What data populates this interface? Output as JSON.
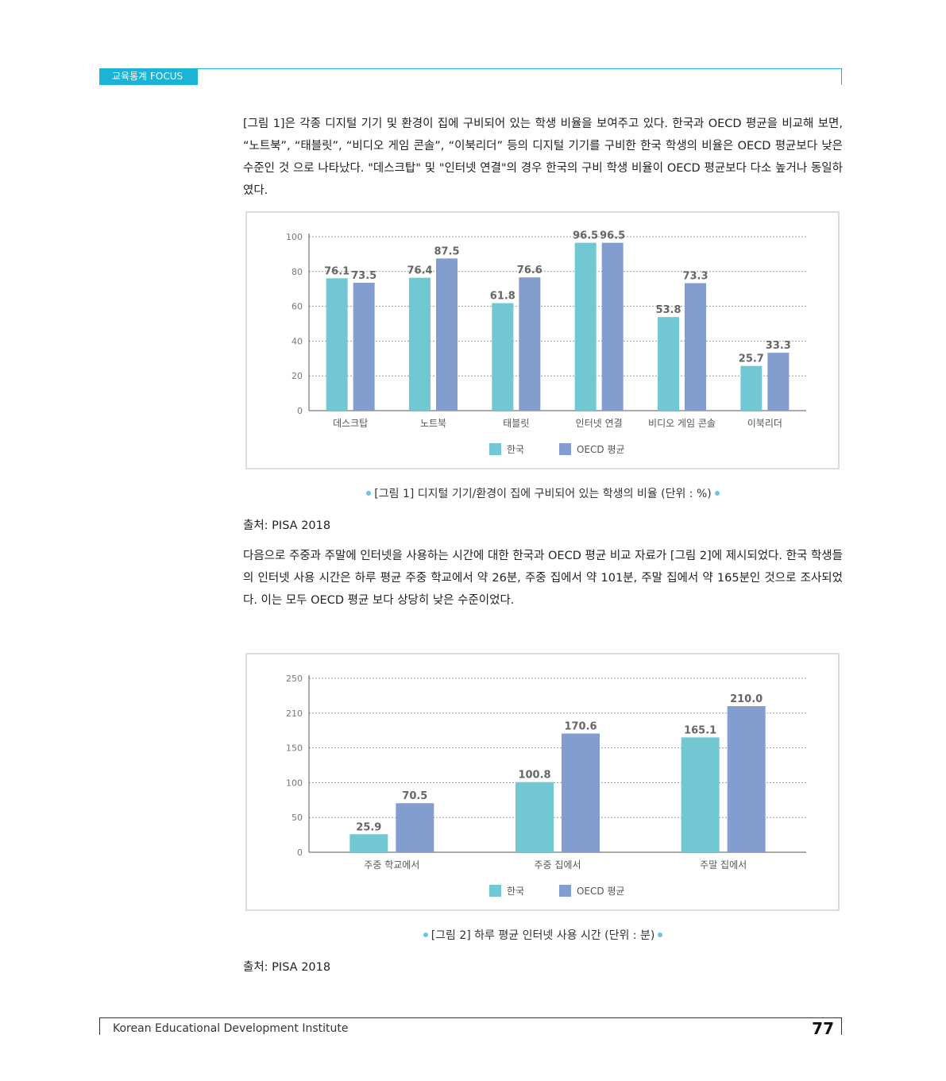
{
  "header": {
    "section_label": "교육통계 FOCUS"
  },
  "paragraphs": {
    "p1": "[그림 1]은 각종 디지털 기기 및 환경이 집에 구비되어 있는 학생 비율을 보여주고 있다. 한국과 OECD 평균을 비교해 보면, “노트북”, “태블릿”, “비디오 게임 콘솔”, “이북리더” 등의 디지털 기기를 구비한 한국 학생의 비율은 OECD 평균보다 낮은 수준인 것 으로 나타났다. \"데스크탑\" 및 \"인터넷 연결\"의 경우 한국의 구비 학생 비율이 OECD 평균보다 다소 높거나 동일하였다.",
    "p2": "다음으로 주중과 주말에 인터넷을 사용하는 시간에 대한 한국과 OECD 평균 비교 자료가 [그림 2]에 제시되었다. 한국 학생들의 인터넷 사용 시간은 하루 평균 주중 학교에서 약 26분, 주중 집에서 약 101분, 주말 집에서 약 165분인 것으로 조사되었다. 이는 모두 OECD 평균 보다 상당히 낮은 수준이었다."
  },
  "captions": {
    "fig1": "[그림 1] 디지털 기기/환경이 집에 구비되어 있는 학생의 비율 (단위 : %)",
    "fig2": "[그림 2] 하루 평균 인터넷 사용 시간 (단위 : 분)"
  },
  "sources": {
    "s1": "출처: PISA 2018",
    "s2": "출처: PISA 2018"
  },
  "footer": {
    "institute": "Korean Educational Development Institute",
    "page": "77"
  },
  "colors": {
    "accent": "#1bb3d6",
    "korea": "#72c8d2",
    "oecd": "#849dcf"
  },
  "chart_data": [
    {
      "type": "bar",
      "categories": [
        "데스크탑",
        "노트북",
        "태블릿",
        "인터넷 연결",
        "비디오 게임 콘솔",
        "이북리더"
      ],
      "series": [
        {
          "name": "한국",
          "values": [
            76.1,
            76.4,
            61.8,
            96.5,
            53.8,
            25.7
          ]
        },
        {
          "name": "OECD 평균",
          "values": [
            73.5,
            87.5,
            76.6,
            96.5,
            73.3,
            33.3
          ]
        }
      ],
      "yticks": [
        "0",
        "20",
        "40",
        "60",
        "80",
        "100"
      ],
      "ylim": [
        0,
        100
      ],
      "grid": true,
      "legend": "bottom-center"
    },
    {
      "type": "bar",
      "categories": [
        "주중 학교에서",
        "주중 집에서",
        "주말 집에서"
      ],
      "series": [
        {
          "name": "한국",
          "values": [
            25.9,
            100.8,
            165.1
          ]
        },
        {
          "name": "OECD 평균",
          "values": [
            70.5,
            170.6,
            210.0
          ]
        }
      ],
      "yticks": [
        "0",
        "50",
        "100",
        "150",
        "210",
        "250"
      ],
      "ylim": [
        0,
        250
      ],
      "grid": true,
      "legend": "bottom-center"
    }
  ]
}
